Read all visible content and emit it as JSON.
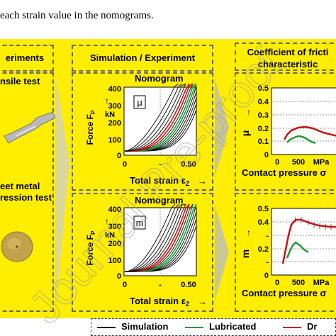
{
  "caption": "each strain value in the nomograms.",
  "headers": {
    "experiments": "eriments",
    "simulation": "Simulation / Experiment",
    "coefficient_l1": "Coefficient of fricti",
    "coefficient_l2": "characteristic"
  },
  "experiments": {
    "tensile": "nsile test",
    "compression_l1": "eet metal",
    "compression_l2": "ression test"
  },
  "nomogram_title": "Nomogram",
  "top_nomogram": {
    "symbol": "μ",
    "ylabel": "Force F",
    "ylabel_sub": "P",
    "unit": "kN",
    "yticks": [
      "400",
      "300",
      "200",
      "100",
      "0"
    ],
    "xticks": [
      "0",
      "-",
      "0.50"
    ],
    "xlabel": "Total strain ε",
    "xlabel_sub": "Z"
  },
  "bottom_nomogram": {
    "symbol": "m",
    "ylabel": "Force F",
    "ylabel_sub": "P",
    "unit": "kN",
    "yticks": [
      "400",
      "300",
      "200",
      "100",
      "0"
    ],
    "xticks": [
      "0",
      "-",
      "0.50"
    ],
    "xlabel": "Total strain ε",
    "xlabel_sub": "Z"
  },
  "top_friction": {
    "ylabel": "μ",
    "yticks": [
      "0.5",
      "0.4",
      "0.3",
      "0.2",
      "0.1",
      "0"
    ],
    "xticks": [
      "0",
      "500",
      "MPa"
    ],
    "xlabel": "Contact pressure σ"
  },
  "bottom_friction": {
    "ylabel": "m",
    "yticks": [
      "0.5",
      "0.4",
      "-",
      "0.2",
      "-",
      "0"
    ],
    "xticks": [
      "0",
      "500",
      "MPa"
    ],
    "xlabel": "Contact pressure σ"
  },
  "legend": {
    "simulation": "Simulation",
    "lubricated": "Lubricated",
    "dry": "Dr"
  },
  "colors": {
    "background": "#ffee00",
    "simulation": "#000000",
    "lubricated": "#1e9a3c",
    "dry": "#cc1111"
  },
  "watermark": "Journal Pre-proof"
}
